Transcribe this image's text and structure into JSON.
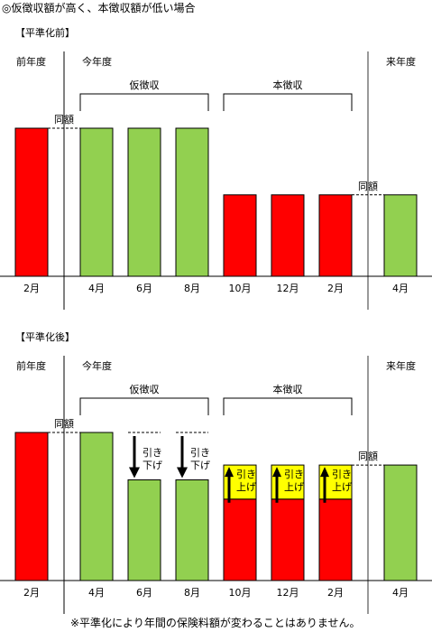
{
  "header": {
    "title": "◎仮徴収額が高く、本徴収額が低い場合"
  },
  "footer": {
    "note": "※平準化により年間の保険料額が変わることはありません。"
  },
  "colors": {
    "red": "#ff0000",
    "green": "#92d050",
    "yellow": "#ffff00",
    "black": "#000000",
    "divider": "#999999"
  },
  "before": {
    "section_label": "【平準化前】",
    "col_prev_year": "前年度",
    "col_this_year": "今年度",
    "col_next_year": "来年度",
    "bracket_provisional": "仮徴収",
    "bracket_main": "本徴収",
    "same_label_left": "同額",
    "same_label_right": "同額",
    "months": [
      "2月",
      "4月",
      "6月",
      "8月",
      "10月",
      "12月",
      "2月",
      "4月"
    ],
    "bars": [
      {
        "color": "red",
        "level": 1.0
      },
      {
        "color": "green",
        "level": 1.0
      },
      {
        "color": "green",
        "level": 1.0
      },
      {
        "color": "green",
        "level": 1.0
      },
      {
        "color": "red",
        "level": 0.55
      },
      {
        "color": "red",
        "level": 0.55
      },
      {
        "color": "red",
        "level": 0.55
      },
      {
        "color": "green",
        "level": 0.55
      }
    ]
  },
  "after": {
    "section_label": "【平準化後】",
    "col_prev_year": "前年度",
    "col_this_year": "今年度",
    "col_next_year": "来年度",
    "bracket_provisional": "仮徴収",
    "bracket_main": "本徴収",
    "same_label_left": "同額",
    "same_label_right": "同額",
    "down_label": [
      "引き",
      "下げ"
    ],
    "up_label": [
      "引き",
      "上げ"
    ],
    "months": [
      "2月",
      "4月",
      "6月",
      "8月",
      "10月",
      "12月",
      "2月",
      "4月"
    ],
    "bars": [
      {
        "color": "red",
        "level": 1.0
      },
      {
        "color": "green",
        "level": 1.0
      },
      {
        "color": "green",
        "level": 0.68
      },
      {
        "color": "green",
        "level": 0.68
      },
      {
        "color": "red",
        "level": 0.55,
        "raised_level": 0.78
      },
      {
        "color": "red",
        "level": 0.55,
        "raised_level": 0.78
      },
      {
        "color": "red",
        "level": 0.55,
        "raised_level": 0.78
      },
      {
        "color": "green",
        "level": 0.78
      }
    ]
  }
}
